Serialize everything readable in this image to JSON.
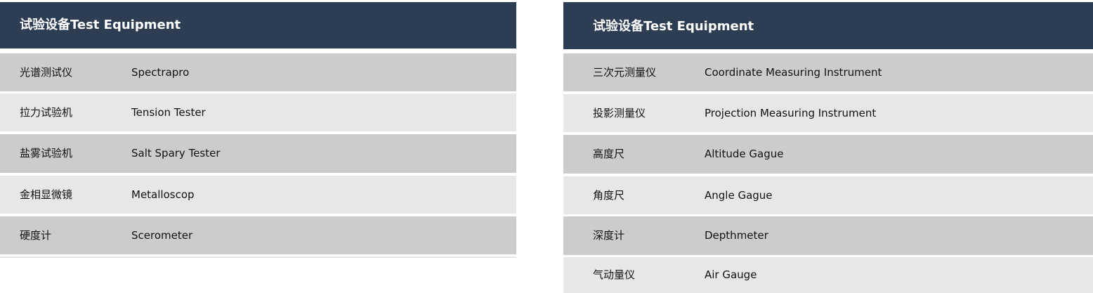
{
  "left": {
    "title": "试验设备Test Equipment",
    "rows": [
      {
        "cn": "光谱测试仪",
        "en": "Spectrapro"
      },
      {
        "cn": "拉力试验机",
        "en": "Tension Tester"
      },
      {
        "cn": "盐雾试验机",
        "en": "Salt Spary Tester"
      },
      {
        "cn": "金相显微镜",
        "en": "Metalloscop"
      },
      {
        "cn": "硬度计",
        "en": "Scerometer"
      }
    ]
  },
  "right": {
    "title": "试验设备Test Equipment",
    "rows": [
      {
        "cn": "三次元测量仪",
        "en": "Coordinate Measuring Instrument"
      },
      {
        "cn": "投影测量仪",
        "en": "Projection Measuring Instrument"
      },
      {
        "cn": "高度尺",
        "en": "Altitude Gague"
      },
      {
        "cn": "角度尺",
        "en": "Angle Gague"
      },
      {
        "cn": "深度计",
        "en": "Depthmeter"
      },
      {
        "cn": "气动量仪",
        "en": "Air Gauge"
      }
    ]
  },
  "colors": {
    "header": "#2c3d54",
    "row_dark": "#cbccce",
    "row_light": "#e7e7e7"
  }
}
